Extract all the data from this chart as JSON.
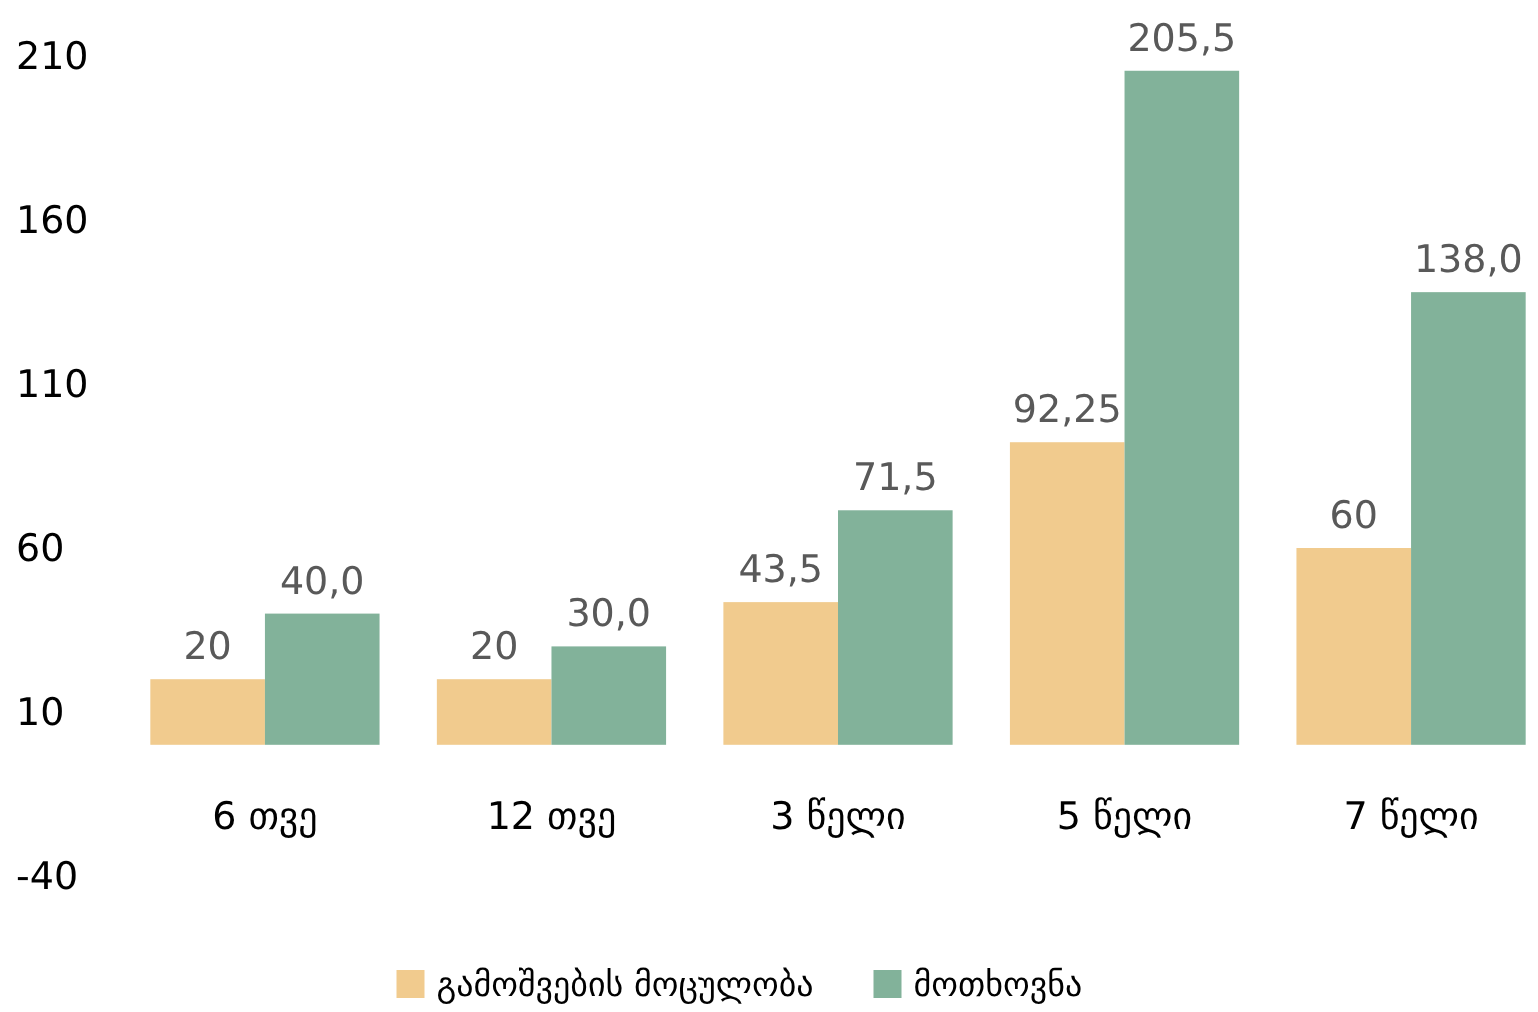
{
  "chart_data": {
    "type": "bar",
    "categories": [
      "6 თვე",
      "12 თვე",
      "3 წელი",
      "5 წელი",
      "7 წელი"
    ],
    "series": [
      {
        "name": "გამოშვების მოცულობა",
        "color": "#f1cb8e",
        "values": [
          20,
          20,
          43.5,
          92.25,
          60
        ],
        "value_labels": [
          "20",
          "20",
          "43,5",
          "92,25",
          "60"
        ]
      },
      {
        "name": "მოთხოვნა",
        "color": "#82b29a",
        "values": [
          40,
          30,
          71.5,
          205.5,
          138
        ],
        "value_labels": [
          "40,0",
          "30,0",
          "71,5",
          "205,5",
          "138,0"
        ]
      }
    ],
    "ylim": [
      -40,
      210
    ],
    "yticks": [
      -40,
      10,
      60,
      110,
      160,
      210
    ],
    "grid": false,
    "legend": "bottom"
  }
}
